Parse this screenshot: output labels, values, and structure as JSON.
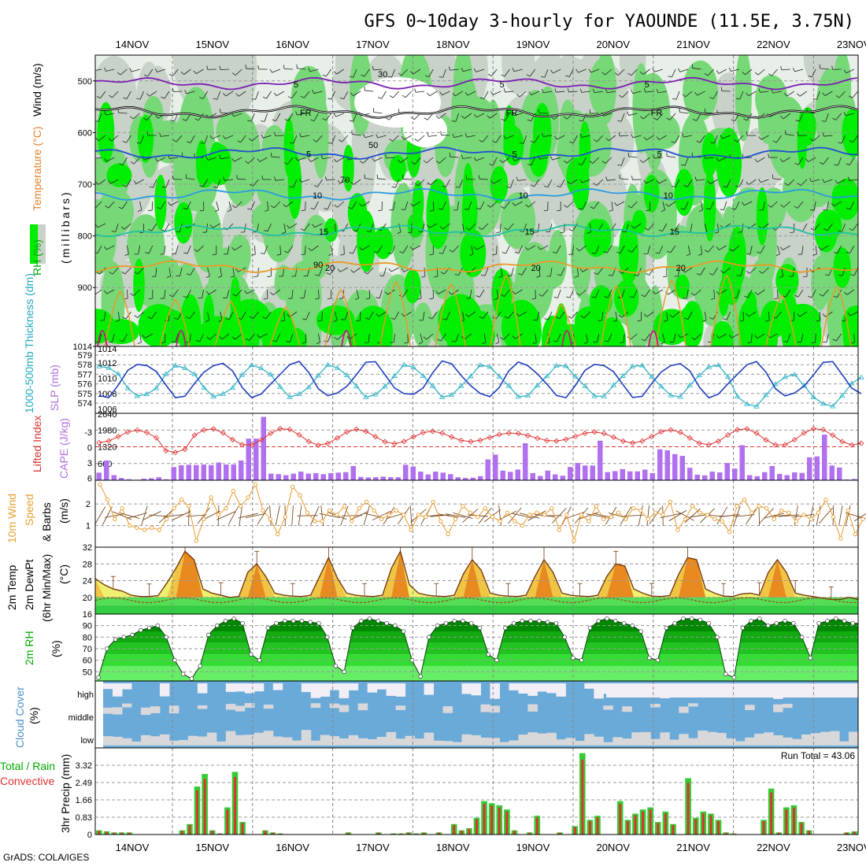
{
  "title": "GFS 0~10day 3-hourly for YAOUNDE (11.5E, 3.75N)",
  "credit": "GrADS: COLA/IGES",
  "dates": [
    "14NOV",
    "15NOV",
    "16NOV",
    "17NOV",
    "18NOV",
    "19NOV",
    "20NOV",
    "21NOV",
    "22NOV",
    "23NOV"
  ],
  "colors": {
    "green_bright": "#00ee00",
    "green_mid": "#77d877",
    "grey": "#c8d2c8",
    "purple": "#b070f0",
    "orange": "#e89a2a",
    "red": "#e03030",
    "blue": "#1f3fbf",
    "cyan": "#33b5c8",
    "cloud_blue": "#6aaad8",
    "cloud_white": "#f2eef6"
  },
  "panels": {
    "upper": {
      "ylabel_rh": "RH (%)",
      "ylabel_temp": "Temperature (°C)",
      "ylabel_wind": "Wind (m/s)",
      "ylabel_mb": "(millibars)",
      "yticks": [
        "500",
        "600",
        "700",
        "800",
        "900",
        "1014"
      ],
      "ylim": [
        1014,
        450
      ],
      "isotherms": [
        {
          "label": "5",
          "color": "#7a1fb0",
          "level": 505
        },
        {
          "label": "FR",
          "color": "#000000",
          "level": 560
        },
        {
          "label": "5",
          "color": "#1f4fd0",
          "level": 640
        },
        {
          "label": "10",
          "color": "#2a9be0",
          "level": 720
        },
        {
          "label": "15",
          "color": "#20c0a0",
          "level": 790
        },
        {
          "label": "20",
          "color": "#e89a2a",
          "level": 860
        }
      ],
      "rh_labels": [
        "30",
        "50",
        "70",
        "90"
      ]
    },
    "slp": {
      "ylabel_thk": "1000-500mb Thickness (dm)",
      "ylabel_slp": "SLP (mb)",
      "thk_ticks": [
        "579",
        "578",
        "577",
        "576",
        "575",
        "574"
      ],
      "slp_ticks": [
        "1012",
        "1010",
        "1008",
        "1006"
      ]
    },
    "cape": {
      "ylabel_li": "Lifted Index",
      "ylabel_cape": "CAPE (J/kg)",
      "li_ticks": [
        "-3",
        "0",
        "3",
        "6"
      ],
      "cape_ticks": [
        "1980",
        "1320",
        "660"
      ],
      "cape_top": "2640",
      "cape_values": [
        300,
        780,
        200,
        90,
        40,
        20,
        60,
        80,
        120,
        40,
        520,
        590,
        610,
        600,
        620,
        600,
        700,
        620,
        620,
        780,
        1640,
        1640,
        2500,
        260,
        240,
        200,
        260,
        340,
        260,
        280,
        240,
        280,
        300,
        320,
        560,
        130,
        110,
        120,
        140,
        120,
        120,
        610,
        540,
        340,
        230,
        340,
        300,
        240,
        120,
        90,
        100,
        160,
        820,
        1010,
        380,
        330,
        420,
        1460,
        280,
        170,
        380,
        230,
        180,
        520,
        680,
        580,
        580,
        1560,
        320,
        360,
        440,
        350,
        350,
        420,
        280,
        1220,
        1180,
        1030,
        960,
        490,
        220,
        190,
        340,
        310,
        680,
        460,
        1380,
        200,
        160,
        320,
        560,
        250,
        200,
        310,
        290,
        900,
        940,
        1800,
        580,
        500,
        30,
        50
      ]
    },
    "wind10m": {
      "ylabel1": "10m Wind",
      "ylabel2": "Speed",
      "ylabel3": "& Barbs",
      "unit": "(m/s)",
      "yticks": [
        "2",
        "1"
      ],
      "values": [
        2.9,
        2.2,
        1.3,
        1.8,
        1.0,
        0.9,
        0.8,
        0.9,
        0.8,
        1.3,
        1.8,
        2.2,
        1.9,
        0.3,
        1.3,
        2.3,
        1.5,
        1.8,
        2.6,
        1.9,
        2.3,
        2.9,
        1.7,
        1.3,
        0.6,
        1.4,
        2.8,
        2.4,
        1.6,
        1.2,
        1.2,
        1.7,
        1.5,
        1.9,
        1.2,
        1.8,
        2.1,
        1.7,
        1.3,
        1.5,
        1.7,
        1.5,
        0.8,
        1.5,
        1.4,
        2.1,
        1.2,
        0.6,
        1.3,
        1.9,
        1.6,
        1.4,
        1.8,
        1.4,
        1.2,
        1.6,
        1.2,
        1.0,
        1.5,
        1.6,
        1.5,
        1.8,
        0.8,
        1.5,
        0.3,
        1.5,
        1.2,
        1.9,
        1.3,
        1.4,
        1.6,
        1.3,
        1.8,
        1.7,
        1.3,
        1.6,
        1.5,
        2.1,
        0.8,
        1.3,
        1.9,
        1.6,
        1.5,
        1.3,
        1.2,
        0.7,
        1.9,
        2.2,
        1.6,
        1.9,
        1.8,
        1.3,
        1.7,
        1.6,
        1.2,
        1.5,
        1.3,
        1.6,
        2.2,
        1.4,
        0.4,
        1.7,
        0.6,
        1.3
      ]
    },
    "temp2m": {
      "ylabel1": "2m Temp",
      "ylabel2": "2m DewPt",
      "ylabel3": "(6hr Min/Max)",
      "unit": "(°C)",
      "yticks": [
        "32",
        "28",
        "24",
        "20",
        "16"
      ],
      "ylim": [
        16,
        32
      ]
    },
    "rh2m": {
      "ylabel": "2m RH",
      "unit": "(%)",
      "yticks": [
        "90",
        "80",
        "70",
        "60",
        "50"
      ],
      "ylim": [
        42,
        100
      ]
    },
    "cloud": {
      "ylabel": "Cloud Cover",
      "unit": "(%)",
      "levels": [
        "high",
        "middle",
        "low"
      ]
    },
    "precip": {
      "ylabel1": "Total / Rain",
      "ylabel2": "Convective",
      "ylabel_y": "3hr Precip (mm)",
      "yticks": [
        "3.32",
        "2.49",
        "1.66",
        "0.83",
        "0"
      ],
      "ylim": [
        0,
        4.15
      ],
      "run_total": "Run Total = 43.06"
    }
  },
  "chart_data": {
    "type": "meteogram",
    "location": "YAOUNDE (11.5E, 3.75N)",
    "model": "GFS 0~10day 3-hourly",
    "x_dates": [
      "14NOV",
      "15NOV",
      "16NOV",
      "17NOV",
      "18NOV",
      "19NOV",
      "20NOV",
      "21NOV",
      "22NOV",
      "23NOV"
    ],
    "precip_values": [
      0.2,
      0.15,
      0.1,
      0.1,
      0.1,
      0,
      0,
      0,
      0,
      0,
      0,
      0.2,
      0.5,
      2.3,
      2.9,
      0.2,
      0.05,
      1.3,
      3.0,
      0.6,
      0,
      0,
      0.2,
      0.1,
      0.05,
      0,
      0,
      0,
      0,
      0,
      0,
      0,
      0,
      0.1,
      0,
      0,
      0,
      0.1,
      0,
      0.05,
      0.05,
      0.1,
      0.05,
      0.1,
      0,
      0.1,
      0,
      0.5,
      0.2,
      0.3,
      0.8,
      1.6,
      1.5,
      1.4,
      1.2,
      0.2,
      0,
      0.1,
      0.9,
      0,
      0,
      0.1,
      0,
      0.4,
      3.9,
      0.7,
      0.9,
      0,
      0,
      1.6,
      0.7,
      1.0,
      1.2,
      1.3,
      0.6,
      1.1,
      0.5,
      0,
      2.7,
      0.8,
      1.1,
      1.0,
      0.7,
      0.1,
      0.05,
      0,
      0,
      0,
      0.7,
      2.2,
      0.1,
      1.3,
      1.4,
      0.6,
      0.2,
      0,
      0,
      0,
      0,
      0.1,
      0.15
    ],
    "temp2m_values": [
      24.5,
      23,
      22,
      21.5,
      20.5,
      20.2,
      20.2,
      20.4,
      23.5,
      27,
      31,
      29,
      22,
      21,
      20.5,
      20,
      20.2,
      26,
      28,
      25,
      21,
      20.5,
      20.3,
      20.2,
      20.5,
      25,
      29.5,
      24.5,
      21,
      20.5,
      20.3,
      20.2,
      20.5,
      27,
      31,
      23,
      21,
      20.5,
      20.3,
      20.2,
      20.5,
      25.5,
      29,
      26.5,
      21,
      20.5,
      20.3,
      20.2,
      20.5,
      25,
      29,
      26,
      21,
      20.5,
      20.3,
      20.2,
      20.5,
      25,
      28,
      27.5,
      22,
      21,
      20.3,
      20.2,
      20.4,
      25.5,
      29.5,
      29,
      22,
      21,
      20.3,
      20.2,
      20.8,
      21,
      20.5,
      26,
      29,
      26,
      21,
      20.5,
      20.2,
      19.8,
      19.5,
      19.5,
      20,
      19.5
    ],
    "rh2m_values": [
      45,
      70,
      78,
      80,
      82,
      86,
      88,
      90,
      80,
      60,
      48,
      44,
      55,
      82,
      90,
      94,
      96,
      92,
      65,
      60,
      88,
      92,
      94,
      94,
      94,
      93,
      92,
      80,
      55,
      50,
      88,
      94,
      96,
      94,
      92,
      90,
      85,
      60,
      46,
      80,
      90,
      92,
      94,
      94,
      92,
      88,
      65,
      60,
      88,
      92,
      94,
      94,
      94,
      93,
      92,
      80,
      62,
      60,
      88,
      94,
      96,
      94,
      92,
      90,
      85,
      62,
      60,
      88,
      92,
      96,
      96,
      95,
      92,
      80,
      48,
      45,
      88,
      94,
      96,
      90,
      92,
      94,
      92,
      80,
      62,
      92,
      94,
      96,
      94,
      92,
      92
    ]
  }
}
